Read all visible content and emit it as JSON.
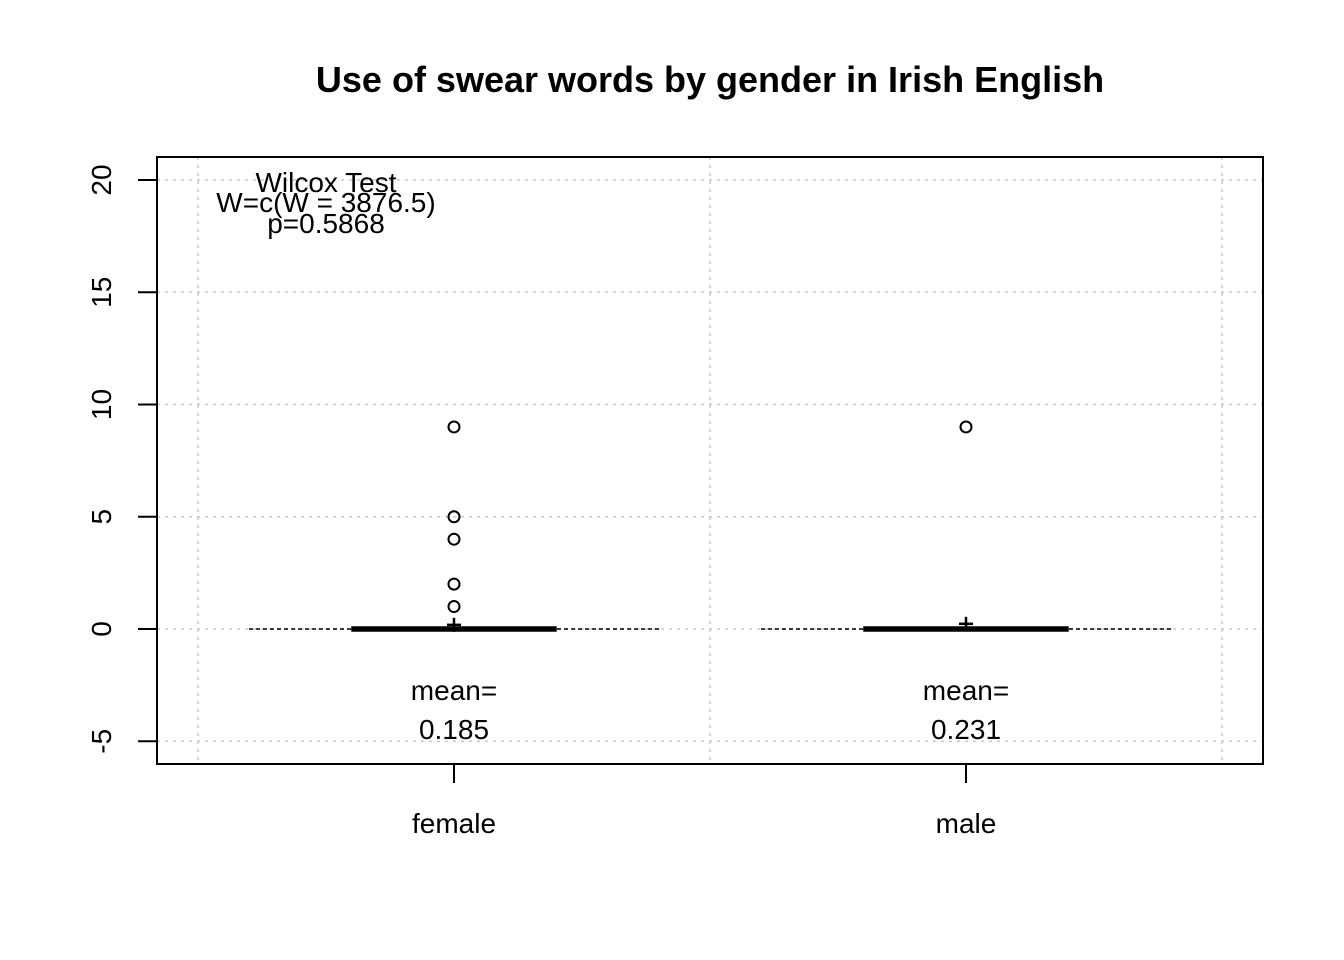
{
  "chart_data": {
    "type": "box",
    "title": "Use of swear words by gender in Irish English",
    "xlabel": "",
    "ylabel": "",
    "categories": [
      "female",
      "male"
    ],
    "ylim": [
      -6,
      21
    ],
    "yticks": [
      -5,
      0,
      5,
      10,
      15,
      20
    ],
    "ytick_labels": [
      "-5",
      "0",
      "5",
      "10",
      "15",
      "20"
    ],
    "grid": true,
    "boxes": [
      {
        "category": "female",
        "min": 0,
        "q1": 0,
        "median": 0,
        "q3": 0,
        "max": 0,
        "mean": 0.185,
        "outliers": [
          1,
          2,
          4,
          5,
          9
        ],
        "mean_label": "mean=",
        "mean_value": "0.185"
      },
      {
        "category": "male",
        "min": 0,
        "q1": 0,
        "median": 0,
        "q3": 0,
        "max": 0,
        "mean": 0.231,
        "outliers": [
          9
        ],
        "mean_label": "mean=",
        "mean_value": "0.231"
      }
    ],
    "annotation": {
      "line1": "Wilcox Test",
      "line2": "W=c(W = 3876.5)",
      "line3": "p=0.5868"
    }
  }
}
